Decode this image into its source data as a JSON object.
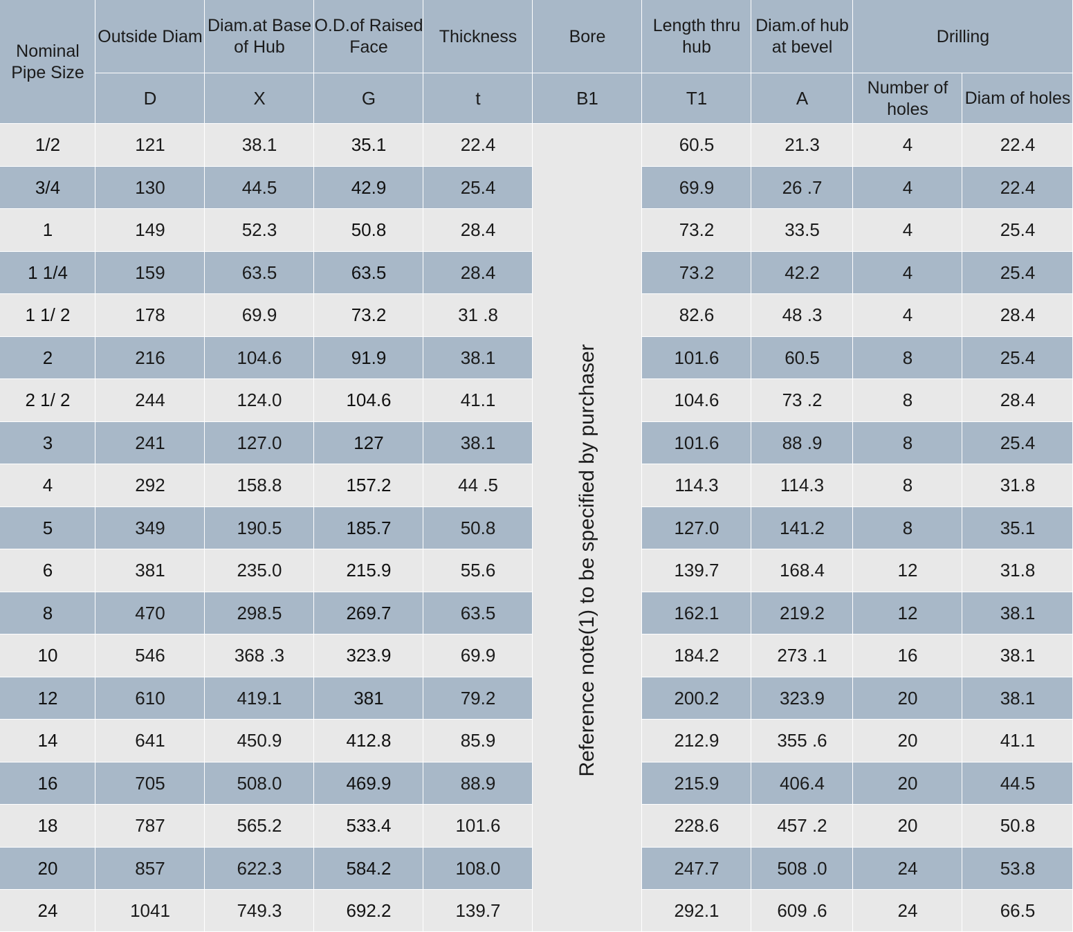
{
  "headers": {
    "nominal_pipe_size": "Nominal Pipe Size",
    "outside_diam": "Outside Diam",
    "diam_base_hub": "Diam.at Base of Hub",
    "od_raised_face": "O.D.of Raised Face",
    "thickness": "Thickness",
    "bore": "Bore",
    "length_thru_hub": "Length  thru hub",
    "diam_hub_bevel": "Diam.of hub at bevel",
    "drilling": "Drilling",
    "number_of_holes": "Number of holes",
    "diam_of_holes": "Diam of holes",
    "sym_D": "D",
    "sym_X": "X",
    "sym_G": "G",
    "sym_t": "t",
    "sym_B1": "B1",
    "sym_T1": "T1",
    "sym_A": "A"
  },
  "bore_note": "Reference note(1) to be specified by purchaser",
  "rows": [
    {
      "size": "1/2",
      "D": "121",
      "X": "38.1",
      "G": "35.1",
      "t": "22.4",
      "T1": "60.5",
      "A": "21.3",
      "holes": "4",
      "hole_diam": "22.4"
    },
    {
      "size": "3/4",
      "D": "130",
      "X": "44.5",
      "G": "42.9",
      "t": "25.4",
      "T1": "69.9",
      "A": "26 .7",
      "holes": "4",
      "hole_diam": "22.4"
    },
    {
      "size": "1",
      "D": "149",
      "X": "52.3",
      "G": "50.8",
      "t": "28.4",
      "T1": "73.2",
      "A": "33.5",
      "holes": "4",
      "hole_diam": "25.4"
    },
    {
      "size": "1 1/4",
      "D": "159",
      "X": "63.5",
      "G": "63.5",
      "t": "28.4",
      "T1": "73.2",
      "A": "42.2",
      "holes": "4",
      "hole_diam": "25.4"
    },
    {
      "size": "1 1/ 2",
      "D": "178",
      "X": "69.9",
      "G": "73.2",
      "t": "31 .8",
      "T1": "82.6",
      "A": "48 .3",
      "holes": "4",
      "hole_diam": "28.4"
    },
    {
      "size": "2",
      "D": "216",
      "X": "104.6",
      "G": "91.9",
      "t": "38.1",
      "T1": "101.6",
      "A": "60.5",
      "holes": "8",
      "hole_diam": "25.4"
    },
    {
      "size": "2 1/ 2",
      "D": "244",
      "X": "124.0",
      "G": "104.6",
      "t": "41.1",
      "T1": "104.6",
      "A": "73 .2",
      "holes": "8",
      "hole_diam": "28.4"
    },
    {
      "size": "3",
      "D": "241",
      "X": "127.0",
      "G": "127",
      "t": "38.1",
      "T1": "101.6",
      "A": "88 .9",
      "holes": "8",
      "hole_diam": "25.4"
    },
    {
      "size": "4",
      "D": "292",
      "X": "158.8",
      "G": "157.2",
      "t": "44 .5",
      "T1": "114.3",
      "A": "114.3",
      "holes": "8",
      "hole_diam": "31.8"
    },
    {
      "size": "5",
      "D": "349",
      "X": "190.5",
      "G": "185.7",
      "t": "50.8",
      "T1": "127.0",
      "A": "141.2",
      "holes": "8",
      "hole_diam": "35.1"
    },
    {
      "size": "6",
      "D": "381",
      "X": "235.0",
      "G": "215.9",
      "t": "55.6",
      "T1": "139.7",
      "A": "168.4",
      "holes": "12",
      "hole_diam": "31.8"
    },
    {
      "size": "8",
      "D": "470",
      "X": "298.5",
      "G": "269.7",
      "t": "63.5",
      "T1": "162.1",
      "A": "219.2",
      "holes": "12",
      "hole_diam": "38.1"
    },
    {
      "size": "10",
      "D": "546",
      "X": "368 .3",
      "G": "323.9",
      "t": "69.9",
      "T1": "184.2",
      "A": "273 .1",
      "holes": "16",
      "hole_diam": "38.1"
    },
    {
      "size": "12",
      "D": "610",
      "X": "419.1",
      "G": "381",
      "t": "79.2",
      "T1": "200.2",
      "A": "323.9",
      "holes": "20",
      "hole_diam": "38.1"
    },
    {
      "size": "14",
      "D": "641",
      "X": "450.9",
      "G": "412.8",
      "t": "85.9",
      "T1": "212.9",
      "A": "355 .6",
      "holes": "20",
      "hole_diam": "41.1"
    },
    {
      "size": "16",
      "D": "705",
      "X": "508.0",
      "G": "469.9",
      "t": "88.9",
      "T1": "215.9",
      "A": "406.4",
      "holes": "20",
      "hole_diam": "44.5"
    },
    {
      "size": "18",
      "D": "787",
      "X": "565.2",
      "G": "533.4",
      "t": "101.6",
      "T1": "228.6",
      "A": "457 .2",
      "holes": "20",
      "hole_diam": "50.8"
    },
    {
      "size": "20",
      "D": "857",
      "X": "622.3",
      "G": "584.2",
      "t": "108.0",
      "T1": "247.7",
      "A": "508 .0",
      "holes": "24",
      "hole_diam": "53.8"
    },
    {
      "size": "24",
      "D": "1041",
      "X": "749.3",
      "G": "692.2",
      "t": "139.7",
      "T1": "292.1",
      "A": "609 .6",
      "holes": "24",
      "hole_diam": "66.5"
    }
  ],
  "colors": {
    "header_bg": "#a8b8c8",
    "row_light": "#e8e8e8",
    "row_dark": "#a8b8c8",
    "text": "#1b1b1b"
  }
}
